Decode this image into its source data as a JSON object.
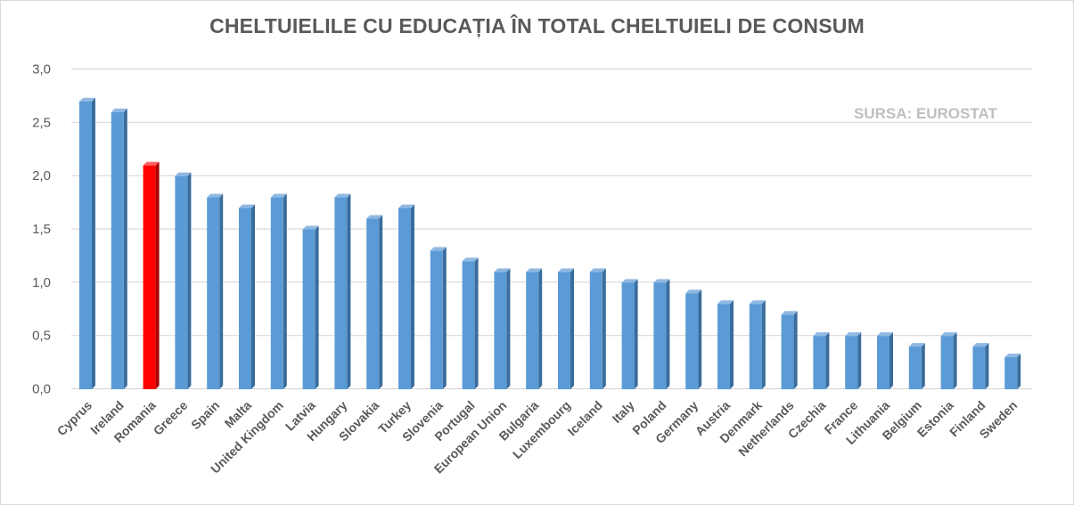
{
  "chart_data": {
    "type": "bar",
    "title": "CHELTUIELILE CU EDUCAȚIA ÎN TOTAL CHELTUIELI DE CONSUM",
    "annotation": "SURSA: EUROSTAT",
    "categories": [
      "Cyprus",
      "Ireland",
      "Romania",
      "Greece",
      "Spain",
      "Malta",
      "United Kingdom",
      "Latvia",
      "Hungary",
      "Slovakia",
      "Turkey",
      "Slovenia",
      "Portugal",
      "European Union",
      "Bulgaria",
      "Luxembourg",
      "Iceland",
      "Italy",
      "Poland",
      "Germany",
      "Austria",
      "Denmark",
      "Netherlands",
      "Czechia",
      "France",
      "Lithuania",
      "Belgium",
      "Estonia",
      "Finland",
      "Sweden"
    ],
    "values": [
      2.7,
      2.6,
      2.1,
      2.0,
      1.8,
      1.7,
      1.8,
      1.5,
      1.8,
      1.6,
      1.7,
      1.3,
      1.2,
      1.1,
      1.1,
      1.1,
      1.1,
      1.0,
      1.0,
      0.9,
      0.8,
      0.8,
      0.7,
      0.5,
      0.5,
      0.5,
      0.4,
      0.5,
      0.4,
      0.3
    ],
    "highlight": "Romania",
    "ylim": [
      0,
      3.0
    ],
    "yticks": [
      "0,0",
      "0,5",
      "1,0",
      "1,5",
      "2,0",
      "2,5",
      "3,0"
    ],
    "grid": true,
    "colors": {
      "bar": "#5b9bd5",
      "bar_side": "#3a6d9c",
      "bar_top": "#8fb8e2",
      "highlight": "#ff0000",
      "highlight_side": "#a80000",
      "highlight_top": "#ff6060",
      "grid": "#d9d9d9"
    }
  }
}
